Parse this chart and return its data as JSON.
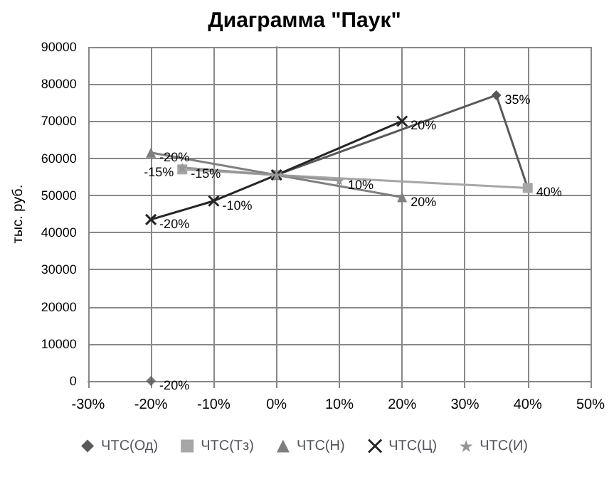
{
  "chart_data": {
    "type": "line",
    "title": "Диаграмма \"Паук\"",
    "ylabel": "тыс. руб.",
    "xlim": [
      -30,
      50
    ],
    "xticks": [
      {
        "value": -30,
        "label": "-30%"
      },
      {
        "value": -20,
        "label": "-20%"
      },
      {
        "value": -10,
        "label": "-10%"
      },
      {
        "value": 0,
        "label": "0%"
      },
      {
        "value": 10,
        "label": "10%"
      },
      {
        "value": 20,
        "label": "20%"
      },
      {
        "value": 30,
        "label": "30%"
      },
      {
        "value": 40,
        "label": "40%"
      },
      {
        "value": 50,
        "label": "50%"
      }
    ],
    "ylim": [
      0,
      90000
    ],
    "yticks": [
      0,
      10000,
      20000,
      30000,
      40000,
      50000,
      60000,
      70000,
      80000,
      90000
    ],
    "grid": true,
    "legend": "bottom",
    "series": [
      {
        "type": "scatter",
        "color": "#595959",
        "marker": "diamond",
        "x": [
          -20
        ],
        "values": [
          0
        ]
      },
      {
        "name": "ЧТС(Од)",
        "color": "#595959",
        "marker": "diamond",
        "x": [
          0,
          35,
          40
        ],
        "values": [
          55500,
          77000,
          52000
        ]
      },
      {
        "name": "ЧТС(Тз)",
        "color": "#a6a6a6",
        "marker": "square",
        "x": [
          -15,
          0,
          40
        ],
        "values": [
          57000,
          55500,
          52000
        ]
      },
      {
        "name": "ЧТС(Н)",
        "color": "#7f7f7f",
        "marker": "triangle",
        "x": [
          -20,
          0,
          20
        ],
        "values": [
          61500,
          55500,
          49500
        ]
      },
      {
        "name": "ЧТС(Ц)",
        "color": "#262626",
        "marker": "cross",
        "x": [
          -20,
          -10,
          0,
          20
        ],
        "values": [
          43500,
          48500,
          55500,
          70000
        ]
      },
      {
        "name": "ЧТС(И)",
        "color": "#969696",
        "marker": "star",
        "x": [
          -15,
          0,
          10
        ],
        "values": [
          57500,
          55500,
          54000
        ]
      }
    ],
    "annotations": [
      {
        "text": "-20%",
        "x": -20,
        "y": 0
      },
      {
        "text": "35%",
        "x": 35,
        "y": 77000
      },
      {
        "text": "-15%",
        "x": -15,
        "y": 57000
      },
      {
        "text": "40%",
        "x": 40,
        "y": 52000
      },
      {
        "text": "-20%",
        "x": -20,
        "y": 61500
      },
      {
        "text": "20%",
        "x": 20,
        "y": 49500
      },
      {
        "text": "-20%",
        "x": -20,
        "y": 43500
      },
      {
        "text": "-10%",
        "x": -10,
        "y": 48500
      },
      {
        "text": "20%",
        "x": 20,
        "y": 70000
      },
      {
        "text": "-15%",
        "x": -15,
        "y": 57500
      },
      {
        "text": "10%",
        "x": 10,
        "y": 54000
      }
    ]
  }
}
